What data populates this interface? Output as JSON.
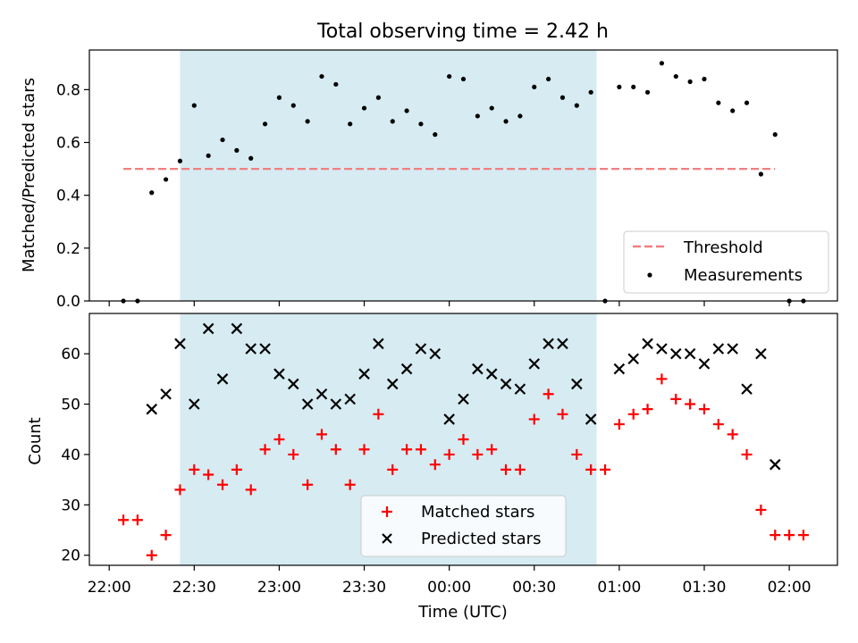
{
  "colors": {
    "shade": "#add8e6",
    "threshold": "#f08080",
    "measurement": "#000000",
    "matched": "#ff0000",
    "predicted": "#000000"
  },
  "chart_data": [
    {
      "type": "scatter",
      "title": "Total observing time = 2.42 h",
      "xlabel": "",
      "ylabel": "Matched/Predicted stars",
      "xlim": [
        "21:53",
        "02:17"
      ],
      "ylim": [
        0,
        0.95
      ],
      "yticks": [
        "0.0",
        "0.2",
        "0.4",
        "0.6",
        "0.8"
      ],
      "grid": false,
      "shaded_interval": [
        "22:25",
        "00:52"
      ],
      "legend_position": "lower-right",
      "legend": [
        "Threshold",
        "Measurements"
      ],
      "threshold": {
        "name": "Threshold",
        "y": 0.5,
        "x_range": [
          "22:05",
          "01:55"
        ],
        "style": "dashed"
      },
      "series": [
        {
          "name": "Measurements",
          "marker": "dot",
          "x": [
            "22:05",
            "22:10",
            "22:15",
            "22:20",
            "22:25",
            "22:30",
            "22:35",
            "22:40",
            "22:45",
            "22:50",
            "22:55",
            "23:00",
            "23:05",
            "23:10",
            "23:15",
            "23:20",
            "23:25",
            "23:30",
            "23:35",
            "23:40",
            "23:45",
            "23:50",
            "23:55",
            "00:00",
            "00:05",
            "00:10",
            "00:15",
            "00:20",
            "00:25",
            "00:30",
            "00:35",
            "00:40",
            "00:45",
            "00:50",
            "00:55",
            "01:00",
            "01:05",
            "01:10",
            "01:15",
            "01:20",
            "01:25",
            "01:30",
            "01:35",
            "01:40",
            "01:45",
            "01:50",
            "01:55",
            "02:00",
            "02:05"
          ],
          "values": [
            0,
            0,
            0.41,
            0.46,
            0.53,
            0.74,
            0.55,
            0.61,
            0.57,
            0.54,
            0.67,
            0.77,
            0.74,
            0.68,
            0.85,
            0.82,
            0.67,
            0.73,
            0.77,
            0.68,
            0.72,
            0.67,
            0.63,
            0.85,
            0.84,
            0.7,
            0.73,
            0.68,
            0.7,
            0.81,
            0.84,
            0.77,
            0.74,
            0.79,
            0,
            0.81,
            0.81,
            0.79,
            0.9,
            0.85,
            0.83,
            0.84,
            0.75,
            0.72,
            0.75,
            0.48,
            0.63,
            0,
            0
          ]
        }
      ]
    },
    {
      "type": "scatter",
      "title": "",
      "xlabel": "Time (UTC)",
      "ylabel": "Count",
      "xlim": [
        "21:53",
        "02:17"
      ],
      "ylim": [
        18,
        68
      ],
      "yticks": [
        "20",
        "30",
        "40",
        "50",
        "60"
      ],
      "xticks": [
        "22:00",
        "22:30",
        "23:00",
        "23:30",
        "00:00",
        "00:30",
        "01:00",
        "01:30",
        "02:00"
      ],
      "grid": false,
      "shaded_interval": [
        "22:25",
        "00:52"
      ],
      "legend_position": "lower-center",
      "legend": [
        "Matched stars",
        "Predicted stars"
      ],
      "series": [
        {
          "name": "Matched stars",
          "marker": "plus",
          "x": [
            "22:05",
            "22:10",
            "22:15",
            "22:20",
            "22:25",
            "22:30",
            "22:35",
            "22:40",
            "22:45",
            "22:50",
            "22:55",
            "23:00",
            "23:05",
            "23:10",
            "23:15",
            "23:20",
            "23:25",
            "23:30",
            "23:35",
            "23:40",
            "23:45",
            "23:50",
            "23:55",
            "00:00",
            "00:05",
            "00:10",
            "00:15",
            "00:20",
            "00:25",
            "00:30",
            "00:35",
            "00:40",
            "00:45",
            "00:50",
            "00:55",
            "01:00",
            "01:05",
            "01:10",
            "01:15",
            "01:20",
            "01:25",
            "01:30",
            "01:35",
            "01:40",
            "01:45",
            "01:50",
            "01:55",
            "02:00",
            "02:05"
          ],
          "values": [
            27,
            27,
            20,
            24,
            33,
            37,
            36,
            34,
            37,
            33,
            41,
            43,
            40,
            34,
            44,
            41,
            34,
            41,
            48,
            37,
            41,
            41,
            38,
            40,
            43,
            40,
            41,
            37,
            37,
            47,
            52,
            48,
            40,
            37,
            37,
            46,
            48,
            49,
            55,
            51,
            50,
            49,
            46,
            44,
            40,
            29,
            24,
            24,
            24
          ]
        },
        {
          "name": "Predicted stars",
          "marker": "x",
          "x": [
            "22:15",
            "22:20",
            "22:25",
            "22:30",
            "22:35",
            "22:40",
            "22:45",
            "22:50",
            "22:55",
            "23:00",
            "23:05",
            "23:10",
            "23:15",
            "23:20",
            "23:25",
            "23:30",
            "23:35",
            "23:40",
            "23:45",
            "23:50",
            "23:55",
            "00:00",
            "00:05",
            "00:10",
            "00:15",
            "00:20",
            "00:25",
            "00:30",
            "00:35",
            "00:40",
            "00:45",
            "00:50",
            "01:00",
            "01:05",
            "01:10",
            "01:15",
            "01:20",
            "01:25",
            "01:30",
            "01:35",
            "01:40",
            "01:45",
            "01:50",
            "01:55"
          ],
          "values": [
            49,
            52,
            62,
            50,
            65,
            55,
            65,
            61,
            61,
            56,
            54,
            50,
            52,
            50,
            51,
            56,
            62,
            54,
            57,
            61,
            60,
            47,
            51,
            57,
            56,
            54,
            53,
            58,
            62,
            62,
            54,
            47,
            57,
            59,
            62,
            61,
            60,
            60,
            58,
            61,
            61,
            53,
            60,
            38
          ]
        }
      ]
    }
  ]
}
